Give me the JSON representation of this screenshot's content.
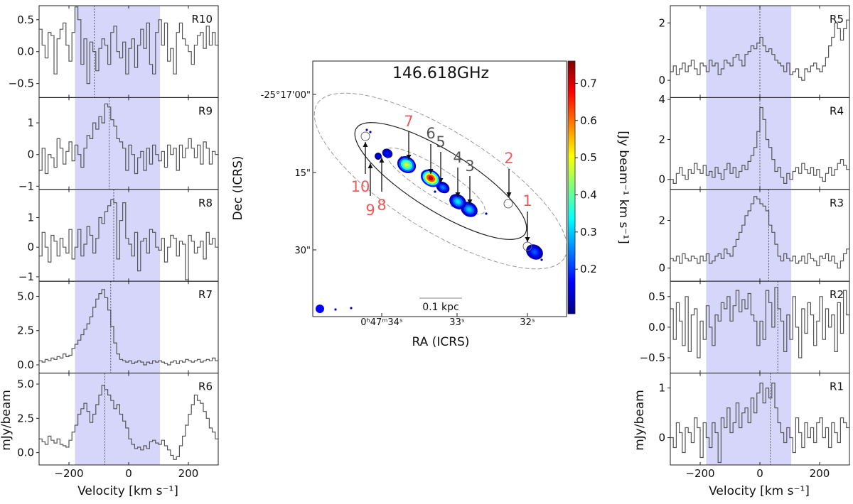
{
  "chart_data": {
    "type": "line",
    "title": "146.618GHz",
    "common": {
      "xlabel": "Velocity [km s⁻¹]",
      "ylabel": "mJy/beam",
      "xlim": [
        -300,
        300
      ],
      "xticks": [
        -200,
        0,
        200
      ],
      "xtick_labels": [
        "−200",
        "0",
        "200"
      ],
      "shaded_band": [
        -180,
        105
      ],
      "band_color": "#d6d6fb",
      "line_color": "#555555"
    },
    "panels": [
      {
        "id": "R10",
        "side": "left",
        "row": 0,
        "vline": -115,
        "ylim": [
          -0.72,
          0.72
        ],
        "yticks": [
          0.5,
          0.0,
          -0.5
        ],
        "ytick_labels": [
          "0.5",
          "0.0",
          "−0.5"
        ],
        "values": [
          0.35,
          0.1,
          -0.1,
          0.3,
          0.25,
          -0.35,
          0.2,
          0.35,
          0.45,
          0.1,
          -0.15,
          0.3,
          0.7,
          0.5,
          -0.2,
          0.2,
          -0.5,
          0.15,
          0.0,
          -0.3,
          0.05,
          0.2,
          0.1,
          -0.2,
          0.3,
          0.4,
          0.0,
          -0.1,
          0.15,
          -0.35,
          0.05,
          0.2,
          -0.25,
          0.1,
          0.35,
          0.05,
          0.45,
          -0.2,
          -0.35,
          0.3,
          0.5,
          0.1,
          0.45,
          -0.15,
          0.05,
          -0.35,
          0.3,
          0.45,
          0.2,
          0.1,
          0.0,
          -0.2,
          0.1,
          0.25,
          0.3,
          0.05,
          0.4,
          0.1,
          0.3,
          0.1
        ]
      },
      {
        "id": "R9",
        "side": "left",
        "row": 1,
        "vline": -65,
        "ylim": [
          -1.1,
          1.8
        ],
        "yticks": [
          1,
          0,
          -1
        ],
        "ytick_labels": [
          "1",
          "0",
          "−1"
        ],
        "values": [
          -0.5,
          0.2,
          -0.6,
          0.0,
          -0.1,
          -0.4,
          0.5,
          0.2,
          -0.3,
          0.1,
          0.4,
          -0.2,
          0.3,
          0.0,
          -0.4,
          0.2,
          0.6,
          0.5,
          1.0,
          0.8,
          1.2,
          1.0,
          1.6,
          1.5,
          1.1,
          0.9,
          0.5,
          0.4,
          0.2,
          -0.5,
          0.3,
          0.0,
          -0.6,
          -0.1,
          0.1,
          -0.5,
          0.2,
          -0.3,
          0.3,
          0.0,
          -0.2,
          0.1,
          -0.4,
          0.3,
          0.0,
          0.2,
          -0.5,
          0.3,
          -0.1,
          0.2,
          0.5,
          0.2,
          -0.1,
          0.3,
          -0.3,
          0.4,
          0.2,
          -0.3,
          0.1,
          0.0
        ]
      },
      {
        "id": "R8",
        "side": "left",
        "row": 2,
        "vline": -50,
        "ylim": [
          -1.15,
          1.95
        ],
        "yticks": [
          1,
          0,
          -1
        ],
        "ytick_labels": [
          "1",
          "0",
          "−1"
        ],
        "values": [
          -0.3,
          0.5,
          0.0,
          -0.5,
          0.4,
          0.2,
          -0.3,
          0.3,
          0.0,
          -0.2,
          0.6,
          -0.4,
          0.0,
          0.6,
          -0.3,
          0.1,
          0.7,
          0.4,
          -0.2,
          0.3,
          1.0,
          0.8,
          1.2,
          1.4,
          1.6,
          1.5,
          -0.4,
          0.9,
          1.5,
          0.3,
          0.1,
          -0.3,
          0.5,
          -0.8,
          0.2,
          0.3,
          -0.2,
          0.6,
          0.5,
          0.0,
          -0.1,
          0.3,
          -0.5,
          0.0,
          0.4,
          0.3,
          -0.3,
          0.2,
          0.1,
          -1.1,
          0.4,
          0.2,
          -0.2,
          0.0,
          0.2,
          -0.4,
          0.5,
          0.1,
          0.3,
          0.0
        ]
      },
      {
        "id": "R7",
        "side": "left",
        "row": 3,
        "vline": -60,
        "ylim": [
          -0.6,
          6.1
        ],
        "yticks": [
          5.0,
          2.5,
          0.0
        ],
        "ytick_labels": [
          "5.0",
          "2.5",
          "0.0"
        ],
        "values": [
          0.3,
          0.2,
          0.4,
          0.3,
          0.5,
          0.4,
          0.6,
          0.5,
          0.8,
          0.6,
          0.7,
          1.2,
          1.5,
          1.8,
          2.2,
          2.6,
          3.0,
          3.5,
          4.2,
          4.8,
          5.2,
          5.5,
          4.9,
          4.0,
          2.8,
          1.6,
          0.8,
          0.4,
          0.3,
          0.2,
          0.3,
          0.1,
          0.2,
          0.3,
          0.2,
          0.0,
          0.2,
          0.1,
          0.3,
          0.2,
          0.3,
          0.2,
          0.1,
          0.0,
          0.2,
          0.3,
          0.1,
          0.3,
          0.2,
          0.4,
          0.3,
          0.2,
          0.3,
          0.4,
          0.2,
          0.3,
          0.4,
          0.3,
          0.5,
          0.3
        ]
      },
      {
        "id": "R6",
        "side": "left",
        "row": 4,
        "vline": -80,
        "ylim": [
          -0.9,
          5.8
        ],
        "yticks": [
          5.0,
          2.5,
          0.0
        ],
        "ytick_labels": [
          "5.0",
          "2.5",
          "0.0"
        ],
        "values": [
          1.0,
          0.8,
          0.6,
          1.2,
          0.9,
          0.7,
          1.0,
          0.6,
          0.5,
          0.4,
          0.9,
          1.5,
          2.0,
          2.8,
          3.2,
          3.6,
          3.0,
          2.2,
          2.8,
          3.5,
          4.2,
          4.9,
          4.6,
          4.2,
          3.8,
          3.2,
          3.5,
          2.8,
          2.3,
          1.8,
          1.0,
          0.6,
          0.3,
          0.4,
          0.2,
          0.5,
          0.3,
          0.8,
          0.9,
          0.7,
          0.6,
          0.9,
          0.5,
          0.2,
          -0.2,
          -0.5,
          -0.3,
          0.5,
          1.2,
          2.0,
          2.8,
          3.5,
          4.2,
          3.8,
          3.6,
          3.0,
          2.5,
          1.8,
          1.5,
          1.0
        ]
      },
      {
        "id": "R5",
        "side": "right",
        "row": 0,
        "vline": 0,
        "ylim": [
          -0.6,
          2.6
        ],
        "yticks": [
          2,
          0
        ],
        "ytick_labels": [
          "2",
          "0"
        ],
        "values": [
          0.3,
          0.5,
          0.2,
          0.4,
          0.6,
          0.3,
          0.5,
          0.7,
          0.4,
          0.2,
          0.6,
          0.5,
          0.3,
          0.7,
          0.5,
          0.6,
          0.2,
          0.4,
          0.7,
          0.6,
          0.5,
          0.8,
          0.9,
          0.7,
          0.5,
          0.9,
          1.0,
          1.2,
          1.1,
          1.3,
          1.5,
          1.2,
          1.0,
          1.1,
          0.9,
          0.7,
          0.6,
          0.5,
          0.3,
          0.6,
          0.2,
          0.3,
          0.4,
          0.1,
          0.0,
          0.4,
          0.3,
          0.5,
          0.6,
          0.4,
          0.3,
          0.5,
          0.8,
          1.2,
          1.5,
          2.0,
          1.8,
          1.4,
          1.8,
          2.1
        ]
      },
      {
        "id": "R4",
        "side": "right",
        "row": 1,
        "vline": 0,
        "ylim": [
          -0.5,
          4.1
        ],
        "yticks": [
          4,
          2,
          0
        ],
        "ytick_labels": [
          "4",
          "2",
          "0"
        ],
        "values": [
          0.0,
          -0.2,
          0.3,
          0.6,
          0.2,
          0.0,
          0.5,
          0.3,
          0.8,
          0.5,
          0.3,
          0.7,
          0.2,
          0.4,
          0.1,
          0.6,
          0.3,
          0.0,
          0.5,
          0.8,
          0.3,
          0.6,
          0.1,
          0.4,
          0.7,
          0.5,
          0.9,
          1.2,
          1.6,
          2.4,
          3.6,
          3.0,
          2.0,
          1.6,
          1.0,
          0.4,
          0.6,
          0.1,
          -0.2,
          0.3,
          0.0,
          0.4,
          0.6,
          0.3,
          0.8,
          0.5,
          0.3,
          0.6,
          0.2,
          0.5,
          0.1,
          -0.1,
          0.3,
          0.6,
          0.2,
          0.5,
          0.8,
          1.0,
          0.7,
          0.5
        ]
      },
      {
        "id": "R3",
        "side": "right",
        "row": 2,
        "vline": 30,
        "ylim": [
          -0.55,
          3.3
        ],
        "yticks": [
          2,
          0
        ],
        "ytick_labels": [
          "2",
          "0"
        ],
        "values": [
          0.4,
          0.3,
          0.5,
          0.2,
          0.6,
          0.4,
          0.3,
          0.5,
          0.4,
          0.2,
          0.5,
          0.3,
          0.6,
          0.2,
          0.3,
          0.5,
          0.6,
          0.4,
          0.8,
          0.6,
          0.5,
          0.9,
          1.2,
          1.5,
          1.8,
          2.2,
          2.4,
          2.7,
          3.0,
          2.9,
          2.7,
          2.6,
          2.4,
          1.8,
          1.5,
          1.0,
          0.5,
          0.3,
          0.6,
          0.4,
          0.3,
          0.5,
          0.2,
          0.3,
          0.5,
          0.2,
          0.6,
          0.4,
          0.3,
          0.1,
          0.5,
          0.4,
          0.6,
          0.3,
          0.5,
          0.2,
          0.0,
          0.3,
          0.6,
          0.8
        ]
      },
      {
        "id": "R2",
        "side": "right",
        "row": 3,
        "vline": 60,
        "ylim": [
          -0.75,
          0.75
        ],
        "yticks": [
          0.5,
          0.0,
          -0.5
        ],
        "ytick_labels": [
          "0.5",
          "0.0",
          "−0.5"
        ],
        "values": [
          0.3,
          -0.2,
          0.4,
          0.1,
          -0.3,
          0.5,
          -0.4,
          0.2,
          0.3,
          -0.5,
          0.1,
          -0.2,
          0.35,
          0.0,
          -0.3,
          0.2,
          0.1,
          0.4,
          0.3,
          0.5,
          0.1,
          0.35,
          0.6,
          0.25,
          0.45,
          0.3,
          0.55,
          0.2,
          0.1,
          -0.3,
          0.1,
          -0.2,
          0.6,
          0.4,
          0.0,
          0.65,
          0.3,
          0.1,
          -0.4,
          0.2,
          -0.2,
          0.5,
          0.0,
          -0.5,
          0.3,
          -0.1,
          0.4,
          0.2,
          -0.3,
          0.1,
          0.5,
          -0.2,
          0.3,
          0.0,
          0.2,
          -0.4,
          0.4,
          -0.1,
          0.6,
          0.2
        ]
      },
      {
        "id": "R1",
        "side": "right",
        "row": 4,
        "vline": 35,
        "ylim": [
          -0.55,
          1.3
        ],
        "yticks": [
          1,
          0
        ],
        "ytick_labels": [
          "1",
          "0"
        ],
        "values": [
          0.0,
          -0.2,
          0.3,
          0.1,
          -0.3,
          0.2,
          0.1,
          -0.1,
          0.4,
          0.2,
          -0.4,
          0.3,
          0.0,
          -0.2,
          0.3,
          0.1,
          -0.5,
          0.4,
          0.2,
          0.6,
          0.1,
          0.3,
          0.7,
          0.2,
          0.5,
          0.6,
          0.3,
          0.8,
          0.5,
          0.9,
          1.1,
          0.7,
          1.0,
          0.8,
          1.1,
          0.6,
          0.3,
          0.1,
          -0.1,
          0.2,
          0.0,
          -0.3,
          0.4,
          0.1,
          -0.2,
          0.3,
          0.0,
          0.2,
          -0.1,
          0.3,
          0.4,
          0.0,
          0.2,
          -0.2,
          0.3,
          0.1,
          -0.1,
          0.4,
          0.3,
          0.2
        ]
      }
    ],
    "map": {
      "title": "146.618GHz",
      "xlabel": "RA (ICRS)",
      "ylabel": "Dec (ICRS)",
      "ra_ticks": [
        "0ʰ47ᵐ34ˢ",
        "33ˢ",
        "32ˢ"
      ],
      "dec_ticks": [
        "-25°17'00\"",
        "15\"",
        "30\""
      ],
      "colorbar_label": "[Jy beam⁻¹ km s⁻¹]",
      "colorbar_ticks": [
        0.7,
        0.6,
        0.5,
        0.4,
        0.3,
        0.2
      ],
      "colorbar_range": [
        0.08,
        0.76
      ],
      "scalebar_label": "0.1 kpc",
      "region_labels": [
        {
          "label": "1",
          "color": "#f05a5a"
        },
        {
          "label": "2",
          "color": "#f05a5a"
        },
        {
          "label": "3",
          "color": "#555555"
        },
        {
          "label": "4",
          "color": "#555555"
        },
        {
          "label": "5",
          "color": "#555555"
        },
        {
          "label": "6",
          "color": "#555555"
        },
        {
          "label": "7",
          "color": "#f05a5a"
        },
        {
          "label": "8",
          "color": "#f05a5a"
        },
        {
          "label": "9",
          "color": "#f05a5a"
        },
        {
          "label": "10",
          "color": "#f05a5a"
        }
      ],
      "blobs": [
        {
          "region": "1",
          "intensity": 0.22
        },
        {
          "region": "3",
          "intensity": 0.3
        },
        {
          "region": "4",
          "intensity": 0.32
        },
        {
          "region": "5",
          "intensity": 0.25
        },
        {
          "region": "6",
          "intensity": 0.72
        },
        {
          "region": "7",
          "intensity": 0.48
        },
        {
          "region": "8",
          "intensity": 0.18
        },
        {
          "region": "9",
          "intensity": 0.15
        }
      ]
    }
  }
}
